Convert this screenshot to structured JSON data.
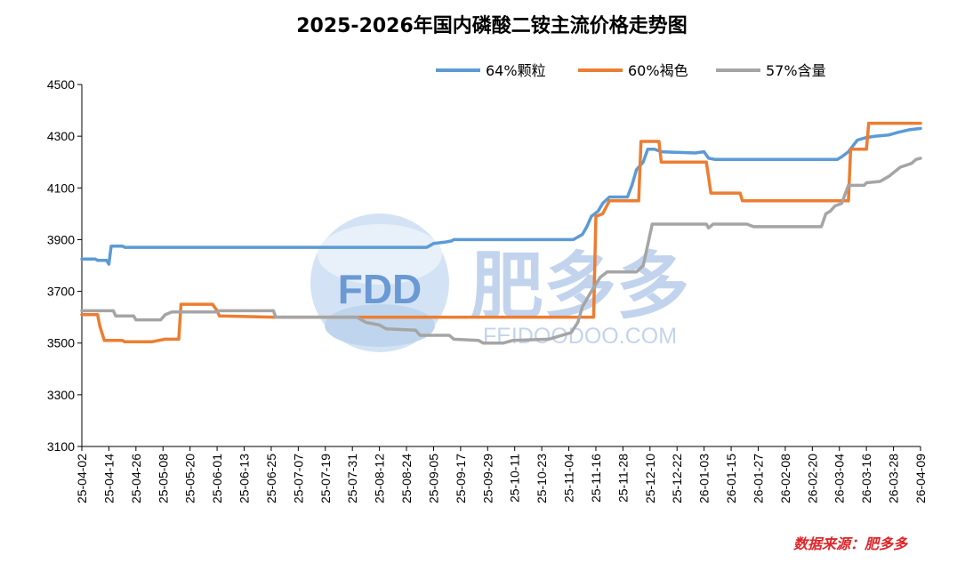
{
  "chart_data": {
    "type": "line",
    "title": "2025-2026年国内磷酸二铵主流价格走势图",
    "source": "数据来源：肥多多",
    "watermark": {
      "logo_text": "FDD",
      "brand_text": "肥多多",
      "url_text": "FEIDOODOO.COM"
    },
    "xlabel": "",
    "ylabel": "",
    "ylim": [
      3100,
      4500
    ],
    "yticks": [
      3100,
      3300,
      3500,
      3700,
      3900,
      4100,
      4300,
      4500
    ],
    "x_start": "2025-04-02",
    "x_end": "2026-04-09",
    "xtick_labels": [
      "25-04-02",
      "25-04-14",
      "25-04-26",
      "25-05-08",
      "25-05-20",
      "25-06-01",
      "25-06-13",
      "25-06-25",
      "25-07-07",
      "25-07-19",
      "25-07-31",
      "25-08-12",
      "25-08-24",
      "25-09-05",
      "25-09-17",
      "25-09-29",
      "25-10-11",
      "25-10-23",
      "25-11-04",
      "25-11-16",
      "25-11-28",
      "25-12-10",
      "25-12-22",
      "26-01-03",
      "26-01-15",
      "26-01-27",
      "26-02-08",
      "26-02-20",
      "26-03-04",
      "26-03-16",
      "26-03-28",
      "26-04-09"
    ],
    "grid": false,
    "legend": "top-right",
    "series": [
      {
        "name": "64%颗粒",
        "color": "#5b9bd5",
        "points": [
          [
            "2025-04-02",
            3825
          ],
          [
            "2025-04-08",
            3825
          ],
          [
            "2025-04-09",
            3820
          ],
          [
            "2025-04-13",
            3820
          ],
          [
            "2025-04-14",
            3805
          ],
          [
            "2025-04-15",
            3875
          ],
          [
            "2025-04-20",
            3875
          ],
          [
            "2025-04-21",
            3870
          ],
          [
            "2025-09-02",
            3870
          ],
          [
            "2025-09-03",
            3875
          ],
          [
            "2025-09-05",
            3885
          ],
          [
            "2025-09-10",
            3890
          ],
          [
            "2025-09-13",
            3895
          ],
          [
            "2025-09-14",
            3900
          ],
          [
            "2025-11-06",
            3900
          ],
          [
            "2025-11-08",
            3910
          ],
          [
            "2025-11-10",
            3920
          ],
          [
            "2025-11-12",
            3950
          ],
          [
            "2025-11-14",
            3990
          ],
          [
            "2025-11-17",
            4010
          ],
          [
            "2025-11-19",
            4040
          ],
          [
            "2025-11-22",
            4065
          ],
          [
            "2025-11-30",
            4065
          ],
          [
            "2025-12-02",
            4110
          ],
          [
            "2025-12-04",
            4170
          ],
          [
            "2025-12-07",
            4200
          ],
          [
            "2025-12-09",
            4250
          ],
          [
            "2025-12-12",
            4250
          ],
          [
            "2025-12-15",
            4240
          ],
          [
            "2025-12-30",
            4235
          ],
          [
            "2026-01-03",
            4240
          ],
          [
            "2026-01-05",
            4215
          ],
          [
            "2026-01-08",
            4210
          ],
          [
            "2026-03-03",
            4210
          ],
          [
            "2026-03-05",
            4220
          ],
          [
            "2026-03-08",
            4240
          ],
          [
            "2026-03-12",
            4285
          ],
          [
            "2026-03-16",
            4295
          ],
          [
            "2026-03-20",
            4300
          ],
          [
            "2026-03-26",
            4305
          ],
          [
            "2026-03-30",
            4315
          ],
          [
            "2026-04-04",
            4325
          ],
          [
            "2026-04-09",
            4330
          ]
        ]
      },
      {
        "name": "60%褐色",
        "color": "#ed7d31",
        "points": [
          [
            "2025-04-02",
            3610
          ],
          [
            "2025-04-09",
            3610
          ],
          [
            "2025-04-10",
            3565
          ],
          [
            "2025-04-12",
            3510
          ],
          [
            "2025-04-20",
            3510
          ],
          [
            "2025-04-21",
            3505
          ],
          [
            "2025-05-03",
            3505
          ],
          [
            "2025-05-06",
            3510
          ],
          [
            "2025-05-09",
            3515
          ],
          [
            "2025-05-15",
            3515
          ],
          [
            "2025-05-16",
            3650
          ],
          [
            "2025-05-30",
            3650
          ],
          [
            "2025-06-01",
            3625
          ],
          [
            "2025-06-02",
            3605
          ],
          [
            "2025-06-26",
            3600
          ],
          [
            "2025-11-15",
            3600
          ],
          [
            "2025-11-16",
            3990
          ],
          [
            "2025-11-19",
            4000
          ],
          [
            "2025-11-22",
            4050
          ],
          [
            "2025-12-05",
            4050
          ],
          [
            "2025-12-06",
            4280
          ],
          [
            "2025-12-14",
            4280
          ],
          [
            "2025-12-15",
            4200
          ],
          [
            "2026-01-04",
            4200
          ],
          [
            "2026-01-06",
            4080
          ],
          [
            "2026-01-19",
            4080
          ],
          [
            "2026-01-20",
            4050
          ],
          [
            "2026-03-08",
            4050
          ],
          [
            "2026-03-09",
            4250
          ],
          [
            "2026-03-16",
            4250
          ],
          [
            "2026-03-17",
            4350
          ],
          [
            "2026-04-09",
            4350
          ]
        ]
      },
      {
        "name": "57%含量",
        "color": "#a5a5a5",
        "points": [
          [
            "2025-04-02",
            3625
          ],
          [
            "2025-04-16",
            3625
          ],
          [
            "2025-04-17",
            3605
          ],
          [
            "2025-04-25",
            3605
          ],
          [
            "2025-04-26",
            3590
          ],
          [
            "2025-05-07",
            3590
          ],
          [
            "2025-05-09",
            3610
          ],
          [
            "2025-05-12",
            3620
          ],
          [
            "2025-06-01",
            3620
          ],
          [
            "2025-06-02",
            3625
          ],
          [
            "2025-06-26",
            3625
          ],
          [
            "2025-06-27",
            3600
          ],
          [
            "2025-08-02",
            3600
          ],
          [
            "2025-08-06",
            3580
          ],
          [
            "2025-08-12",
            3570
          ],
          [
            "2025-08-15",
            3555
          ],
          [
            "2025-08-28",
            3550
          ],
          [
            "2025-08-30",
            3530
          ],
          [
            "2025-09-12",
            3530
          ],
          [
            "2025-09-14",
            3515
          ],
          [
            "2025-09-25",
            3510
          ],
          [
            "2025-09-27",
            3500
          ],
          [
            "2025-10-06",
            3500
          ],
          [
            "2025-10-10",
            3510
          ],
          [
            "2025-10-26",
            3515
          ],
          [
            "2025-10-30",
            3525
          ],
          [
            "2025-11-05",
            3540
          ],
          [
            "2025-11-08",
            3580
          ],
          [
            "2025-11-10",
            3640
          ],
          [
            "2025-11-14",
            3700
          ],
          [
            "2025-11-18",
            3755
          ],
          [
            "2025-11-21",
            3775
          ],
          [
            "2025-12-04",
            3775
          ],
          [
            "2025-12-07",
            3800
          ],
          [
            "2025-12-09",
            3880
          ],
          [
            "2025-12-11",
            3960
          ],
          [
            "2026-01-04",
            3960
          ],
          [
            "2026-01-05",
            3945
          ],
          [
            "2026-01-07",
            3960
          ],
          [
            "2026-01-22",
            3960
          ],
          [
            "2026-01-25",
            3950
          ],
          [
            "2026-02-24",
            3950
          ],
          [
            "2026-02-26",
            4000
          ],
          [
            "2026-02-28",
            4010
          ],
          [
            "2026-03-02",
            4030
          ],
          [
            "2026-03-05",
            4040
          ],
          [
            "2026-03-08",
            4110
          ],
          [
            "2026-03-15",
            4110
          ],
          [
            "2026-03-16",
            4120
          ],
          [
            "2026-03-22",
            4125
          ],
          [
            "2026-03-26",
            4145
          ],
          [
            "2026-03-31",
            4180
          ],
          [
            "2026-04-05",
            4195
          ],
          [
            "2026-04-07",
            4210
          ],
          [
            "2026-04-09",
            4215
          ]
        ]
      }
    ]
  }
}
